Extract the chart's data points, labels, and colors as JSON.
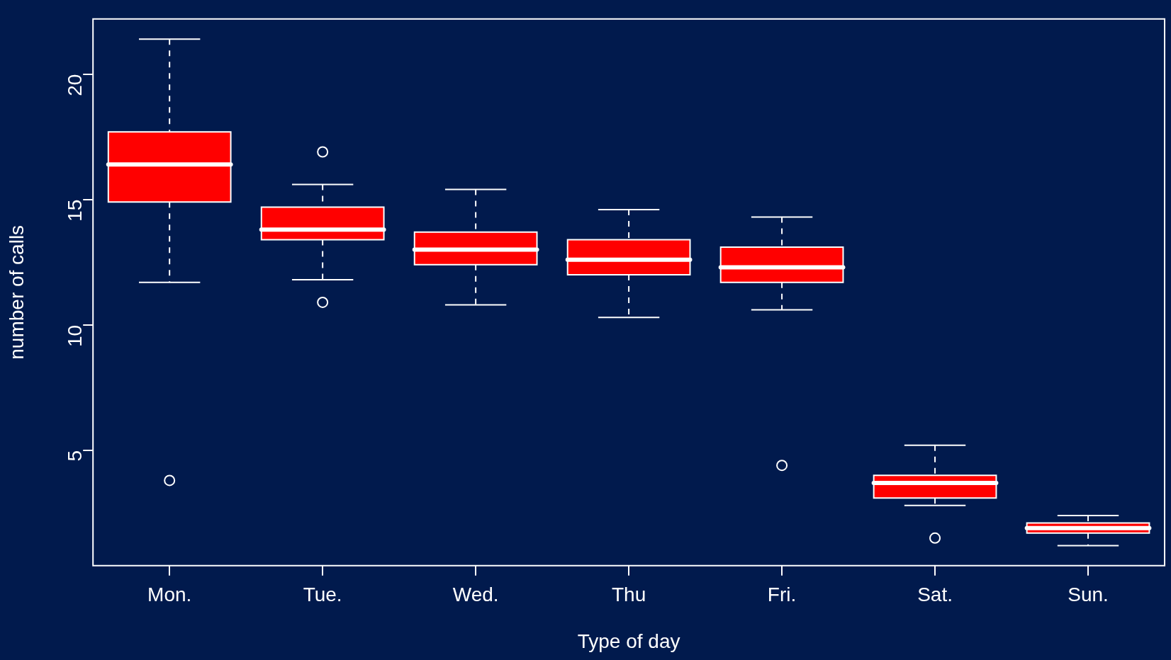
{
  "chart_data": {
    "type": "box",
    "xlabel": "Type of day",
    "ylabel": "number of calls",
    "categories": [
      "Mon.",
      "Tue.",
      "Wed.",
      "Thu",
      "Fri.",
      "Sat.",
      "Sun."
    ],
    "boxes": [
      {
        "low": 11.7,
        "q1": 14.9,
        "median": 16.4,
        "q3": 17.7,
        "high": 21.4,
        "outliers": [
          3.8
        ]
      },
      {
        "low": 11.8,
        "q1": 13.4,
        "median": 13.8,
        "q3": 14.7,
        "high": 15.6,
        "outliers": [
          16.9,
          10.9
        ]
      },
      {
        "low": 10.8,
        "q1": 12.4,
        "median": 13.0,
        "q3": 13.7,
        "high": 15.4
      },
      {
        "low": 10.3,
        "q1": 12.0,
        "median": 12.6,
        "q3": 13.4,
        "high": 14.6
      },
      {
        "low": 10.6,
        "q1": 11.7,
        "median": 12.3,
        "q3": 13.1,
        "high": 14.3,
        "outliers": [
          4.4
        ]
      },
      {
        "low": 2.8,
        "q1": 3.1,
        "median": 3.7,
        "q3": 4.0,
        "high": 5.2,
        "outliers": [
          1.5
        ]
      },
      {
        "low": 1.2,
        "q1": 1.7,
        "median": 1.9,
        "q3": 2.1,
        "high": 2.4
      }
    ],
    "color": "#ff0000",
    "line_style": "dashed",
    "marker": "circle",
    "ylim": [
      0.4,
      22.2
    ],
    "yticks": [
      5,
      10,
      15,
      20
    ],
    "grid": false,
    "legend": false
  }
}
